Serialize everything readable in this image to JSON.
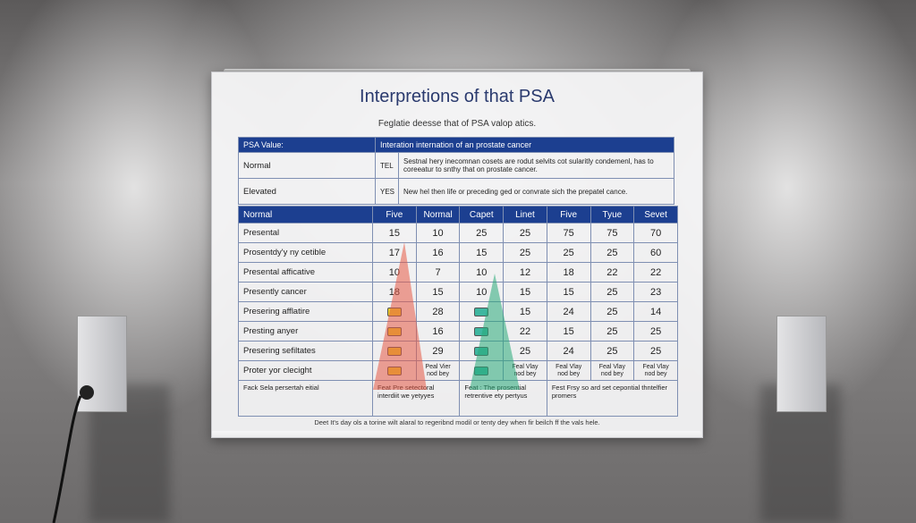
{
  "title": "Interpretions of that PSA",
  "subtitle": "Feglatie deesse that of PSA valop atics.",
  "top_table": {
    "header": [
      "PSA Value:",
      "Interation internation of an prostate cancer"
    ],
    "rows": [
      [
        "Normal",
        "TEL",
        "Sestnal hery inecomnan cosets are rodut selvits cot sularitly condemenl, has to coreeatur to snthy that on prostate cancer."
      ],
      [
        "Elevated",
        "YES",
        "New hel then life or preceding ged or convrate sich the prepatel cance."
      ]
    ]
  },
  "main_table": {
    "header": [
      "Normal",
      "Five",
      "Normal",
      "Capet",
      "Linet",
      "Five",
      "Tyue",
      "Sevet"
    ],
    "rows": [
      {
        "label": "Presental",
        "cells": [
          15,
          10,
          25,
          25,
          75,
          75,
          70
        ]
      },
      {
        "label": "Prosentdy'y ny cetible",
        "cells": [
          17,
          16,
          15,
          25,
          25,
          25,
          60
        ]
      },
      {
        "label": "Presental afficative",
        "cells": [
          10,
          7,
          10,
          12,
          18,
          22,
          22
        ]
      },
      {
        "label": "Presently cancer",
        "cells": [
          18,
          15,
          10,
          15,
          15,
          25,
          23
        ]
      },
      {
        "label": "Presering afflatire",
        "cells": [
          null,
          28,
          null,
          15,
          24,
          25,
          14
        ]
      },
      {
        "label": "Presting anyer",
        "cells": [
          null,
          16,
          null,
          22,
          15,
          25,
          25
        ]
      },
      {
        "label": "Presering sefiltates",
        "cells": [
          null,
          29,
          null,
          25,
          24,
          25,
          25
        ]
      },
      {
        "label": "Proter yor clecight",
        "cells": [
          null,
          "Peal Vier nod bey",
          null,
          "Feal Vlay nod bey",
          "Feal Vlay nod bey",
          "Feal Vlay nod bey",
          "Feal Vlay nod bey"
        ]
      }
    ],
    "footer": [
      "Fack Sela persertah eitial",
      "Feat Pre setectoral interdiit we yetyyes",
      "Feat : The prosential retrentive ety pertyus",
      "Fest Frsy so ard set cepontial thntelfier promers"
    ]
  },
  "footnote": "Deet It's day ols a torine wilt alaral to regeribnd modil or tenty dey when fir beilch ff the vals hele."
}
